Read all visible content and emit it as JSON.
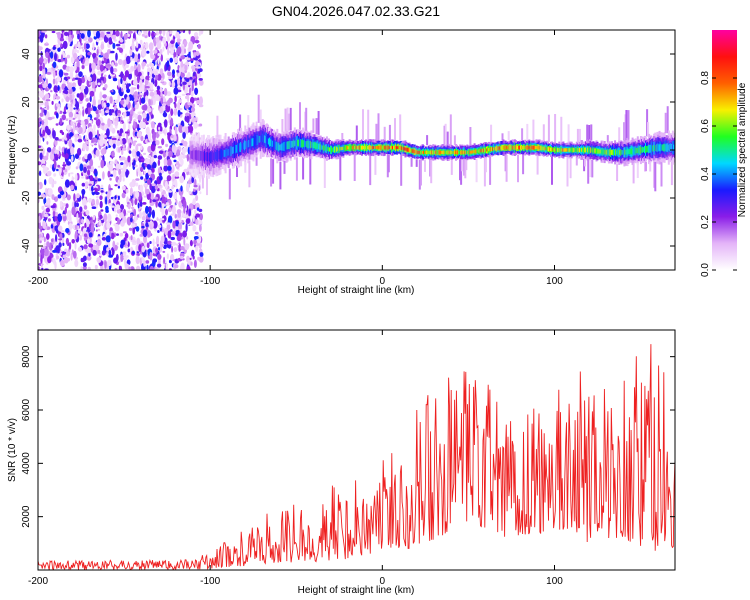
{
  "chart_data": [
    {
      "type": "heatmap",
      "title": "GN04.2026.047.02.33.G21",
      "xlabel": "Height of straight line (km)",
      "ylabel": "Frequency (Hz)",
      "xlim": [
        -200,
        170
      ],
      "ylim": [
        -50,
        50
      ],
      "xticks": [
        "-200",
        "-100",
        "0",
        "100"
      ],
      "yticks": [
        "40",
        "20",
        "0",
        "-20",
        "-40"
      ],
      "colorbar": {
        "label": "Normalized spectral amplitude",
        "range": [
          0,
          1
        ],
        "ticks": [
          "0.0",
          "0.2",
          "0.4",
          "0.6",
          "0.8"
        ],
        "colormap": [
          "#ffffff",
          "#e4b4f8",
          "#8a1de8",
          "#1a1aff",
          "#00d8ff",
          "#20ff20",
          "#f8f000",
          "#ff6000",
          "#ff1010",
          "#ff00a0"
        ]
      },
      "noise_region_x": [
        -200,
        -105
      ],
      "ridge": {
        "x": [
          -110,
          -100,
          -90,
          -80,
          -70,
          -60,
          -50,
          -40,
          -30,
          -20,
          -10,
          0,
          10,
          20,
          30,
          40,
          50,
          60,
          70,
          80,
          90,
          100,
          110,
          120,
          130,
          140,
          150,
          160,
          165
        ],
        "freq": [
          -2,
          -3,
          -1,
          2,
          5,
          1,
          3,
          2,
          0,
          1,
          1,
          1,
          1,
          -1,
          -1,
          -1,
          -1,
          0,
          1,
          1,
          1,
          0,
          0,
          0,
          -1,
          -1,
          0,
          1,
          1
        ],
        "amp": [
          0.25,
          0.35,
          0.45,
          0.45,
          0.5,
          0.5,
          0.55,
          0.6,
          0.65,
          0.8,
          0.85,
          0.9,
          0.9,
          0.85,
          0.8,
          0.8,
          0.8,
          0.85,
          0.9,
          0.9,
          0.85,
          0.8,
          0.75,
          0.7,
          0.7,
          0.6,
          0.6,
          0.55,
          0.5
        ],
        "width": [
          8,
          8,
          7,
          7,
          7,
          6,
          6,
          5,
          4,
          3,
          3,
          3,
          3,
          3,
          3,
          3,
          3,
          3,
          3,
          3,
          3,
          3,
          3,
          4,
          4,
          5,
          5,
          6,
          6
        ]
      }
    },
    {
      "type": "line",
      "xlabel": "Height of straight line (km)",
      "ylabel": "SNR (10 * v/v)",
      "xlim": [
        -200,
        170
      ],
      "ylim": [
        0,
        9000
      ],
      "xticks": [
        "-200",
        "-100",
        "0",
        "100"
      ],
      "yticks": [
        "2000",
        "4000",
        "6000",
        "8000"
      ],
      "color": "#ee2020",
      "series": [
        {
          "name": "SNR",
          "envelope_x": [
            -200,
            -110,
            -100,
            -90,
            -80,
            -70,
            -60,
            -50,
            -40,
            -30,
            -20,
            -10,
            0,
            10,
            20,
            30,
            40,
            50,
            60,
            70,
            80,
            90,
            100,
            110,
            120,
            130,
            140,
            150,
            160,
            170
          ],
          "envelope_min": [
            0,
            0,
            50,
            100,
            150,
            200,
            250,
            300,
            300,
            350,
            400,
            500,
            700,
            800,
            800,
            1000,
            1500,
            1500,
            1500,
            1000,
            1200,
            1200,
            1500,
            1500,
            1000,
            1200,
            1200,
            800,
            600,
            600
          ],
          "envelope_max": [
            350,
            400,
            700,
            1200,
            1500,
            2000,
            2400,
            2500,
            2300,
            3200,
            3500,
            3800,
            4400,
            4800,
            7400,
            6500,
            7400,
            7500,
            7500,
            6200,
            6700,
            6400,
            7400,
            6800,
            8200,
            7000,
            7400,
            8600,
            9000,
            5500
          ]
        }
      ]
    }
  ]
}
